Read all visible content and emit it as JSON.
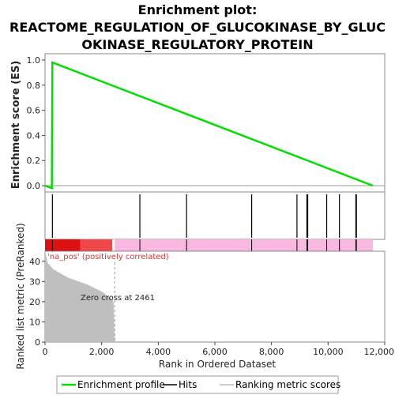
{
  "title_lines": [
    "Enrichment plot:",
    "REACTOME_REGULATION_OF_GLUCOKINASE_BY_GLUC",
    "OKINASE_REGULATORY_PROTEIN"
  ],
  "ylabel_top": "Enrichment score (ES)",
  "ylabel_bottom": "Ranked list metric (PreRanked)",
  "xlabel": "Rank in Ordered Dataset",
  "correlation_label": "'na_pos' (positively correlated)",
  "zero_cross_label": "Zero cross at 2461",
  "legend": {
    "enrichment_profile": "Enrichment profile",
    "hits": "Hits",
    "ranking_metric": "Ranking metric scores"
  },
  "colors": {
    "es_line": "#00dd00",
    "hits": "#000000",
    "ranked_fill": "#bfbfbf",
    "bar_red": "#dd1111",
    "bar_light_red": "#f04848",
    "bar_pink": "#f8b8e0"
  },
  "chart_data": {
    "type": "line",
    "x_range": [
      0,
      12000
    ],
    "x_ticks": [
      "0",
      "2,000",
      "4,000",
      "6,000",
      "8,000",
      "10,000",
      "12,000"
    ],
    "es_ylim": [
      -0.05,
      1.05
    ],
    "es_ticks": [
      "0.0",
      "0.2",
      "0.4",
      "0.6",
      "0.8",
      "1.0"
    ],
    "es_points": [
      [
        0,
        0.0
      ],
      [
        240,
        -0.02
      ],
      [
        260,
        0.98
      ],
      [
        11580,
        0.0
      ]
    ],
    "hits": [
      260,
      3350,
      5000,
      7300,
      8900,
      9250,
      9280,
      9950,
      10400,
      10980,
      11000
    ],
    "metric_ylim": [
      0,
      45
    ],
    "metric_ticks": [
      "0",
      "10",
      "20",
      "30",
      "40"
    ],
    "metric_points": [
      [
        0,
        45
      ],
      [
        100,
        39
      ],
      [
        300,
        36
      ],
      [
        800,
        32
      ],
      [
        1500,
        28.5
      ],
      [
        2000,
        25
      ],
      [
        2300,
        22
      ],
      [
        2420,
        20
      ],
      [
        2461,
        0
      ]
    ],
    "zero_cross": 2461,
    "total_rank": 11580
  }
}
